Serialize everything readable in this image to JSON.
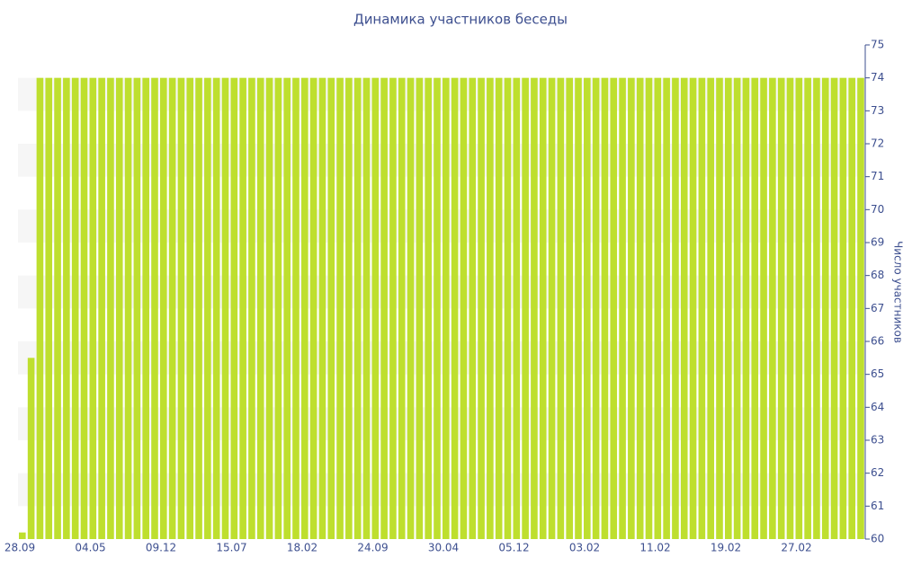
{
  "chart_data": {
    "type": "bar",
    "title": "Динамика участников беседы",
    "y_axis_label": "Число участников",
    "categories": [
      "28.09",
      null,
      null,
      null,
      null,
      null,
      null,
      null,
      "04.05",
      null,
      null,
      null,
      null,
      null,
      null,
      null,
      "09.12",
      null,
      null,
      null,
      null,
      null,
      null,
      null,
      "15.07",
      null,
      null,
      null,
      null,
      null,
      null,
      null,
      "18.02",
      null,
      null,
      null,
      null,
      null,
      null,
      null,
      "24.09",
      null,
      null,
      null,
      null,
      null,
      null,
      null,
      "30.04",
      null,
      null,
      null,
      null,
      null,
      null,
      null,
      "05.12",
      null,
      null,
      null,
      null,
      null,
      null,
      null,
      "03.02",
      null,
      null,
      null,
      null,
      null,
      null,
      null,
      "11.02",
      null,
      null,
      null,
      null,
      null,
      null,
      null,
      "19.02",
      null,
      null,
      null,
      null,
      null,
      null,
      null,
      "27.02",
      null,
      null,
      null,
      null,
      null,
      null,
      null
    ],
    "values": [
      60.2,
      65.5,
      74,
      74,
      74,
      74,
      74,
      74,
      74,
      74,
      74,
      74,
      74,
      74,
      74,
      74,
      74,
      74,
      74,
      74,
      74,
      74,
      74,
      74,
      74,
      74,
      74,
      74,
      74,
      74,
      74,
      74,
      74,
      74,
      74,
      74,
      74,
      74,
      74,
      74,
      74,
      74,
      74,
      74,
      74,
      74,
      74,
      74,
      74,
      74,
      74,
      74,
      74,
      74,
      74,
      74,
      74,
      74,
      74,
      74,
      74,
      74,
      74,
      74,
      74,
      74,
      74,
      74,
      74,
      74,
      74,
      74,
      74,
      74,
      74,
      74,
      74,
      74,
      74,
      74,
      74,
      74,
      74,
      74,
      74,
      74,
      74,
      74,
      74,
      74,
      74,
      74,
      74,
      74,
      74,
      74
    ],
    "color": "#bedf2e",
    "ylim": [
      60,
      75
    ],
    "yticks": [
      60,
      61,
      62,
      63,
      64,
      65,
      66,
      67,
      68,
      69,
      70,
      71,
      72,
      73,
      74,
      75
    ],
    "y_axis_side": "right",
    "grid": "bands"
  }
}
